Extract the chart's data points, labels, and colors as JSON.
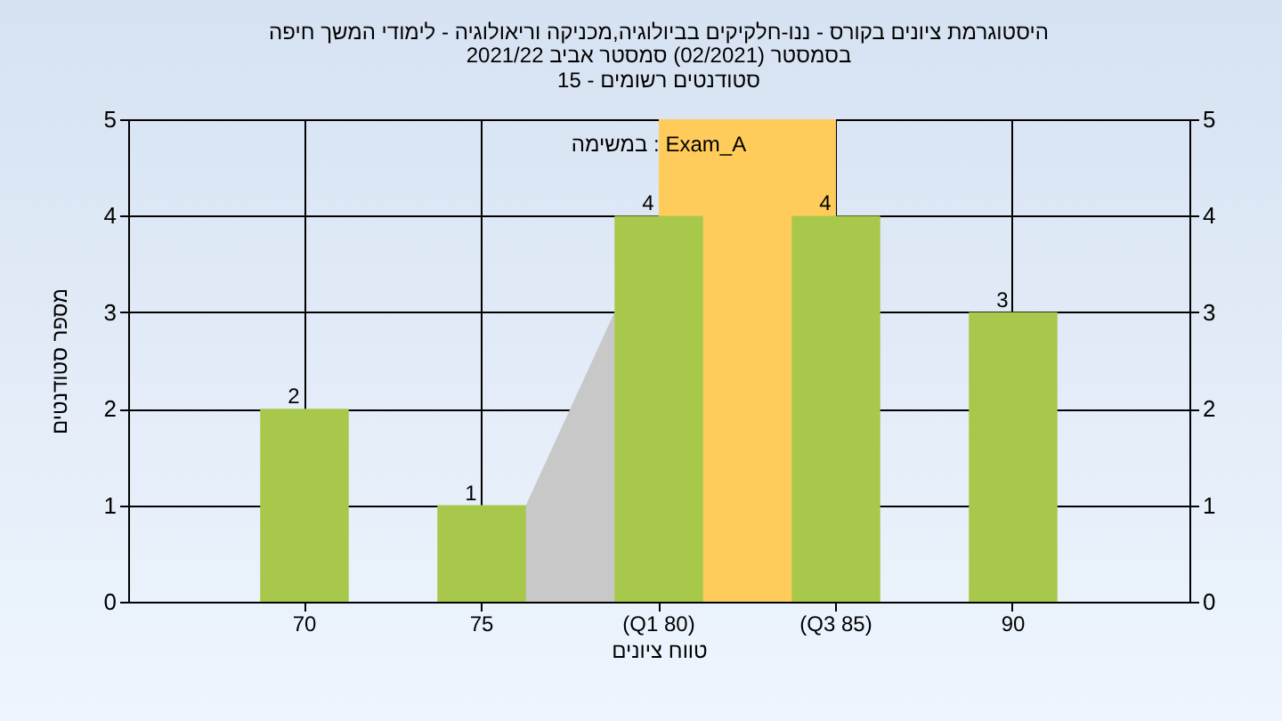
{
  "chart_data": {
    "type": "bar",
    "title": "היסטוגרמת ציונים בקורס - ננו-חלקיקים בביולוגיה,מכניקה וריאולוגיה - לימודי המשך חיפה",
    "subtitle": "בסמסטר  (02/2021)  סמסטר אביב 2021/22\nסטודנטים רשומים - 15",
    "xlabel": "טווח ציונים",
    "ylabel": "מספר סטודנטים",
    "annotations": [
      "במשימה : Exam_A"
    ],
    "categories": [
      "70",
      "75",
      "(Q1 80)",
      "(Q3 85)",
      "90"
    ],
    "series": [
      {
        "type": "area",
        "color": "#c8c8c8",
        "values": [
          null,
          0,
          4,
          4,
          null
        ]
      },
      {
        "color": "#a8c84c",
        "values": [
          2,
          1,
          4,
          4,
          3
        ],
        "value_labels": [
          "2",
          "1",
          "4",
          "4",
          "3"
        ]
      }
    ],
    "bands": [
      {
        "axis": "x",
        "from": "(Q1 80)",
        "to": "(Q3 85)",
        "color": "#ffcc5c"
      }
    ],
    "ylim": [
      0,
      5
    ],
    "yticks": [
      0,
      1,
      2,
      3,
      4,
      5
    ],
    "y2lim": [
      0,
      5
    ],
    "y2ticks": [
      0,
      1,
      2,
      3,
      4,
      5
    ],
    "grid": true
  }
}
